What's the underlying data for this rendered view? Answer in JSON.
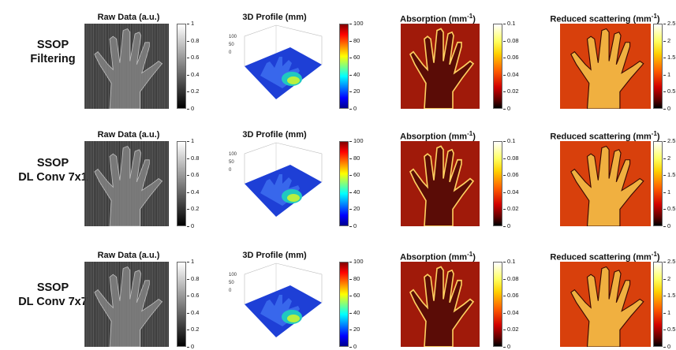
{
  "rows": [
    {
      "label_line1": "SSOP",
      "label_line2": "Filtering"
    },
    {
      "label_line1": "SSOP",
      "label_line2": "DL Conv 7x1"
    },
    {
      "label_line1": "SSOP",
      "label_line2": "DL Conv 7x7"
    }
  ],
  "columns": [
    {
      "title": "Raw Data (a.u.)",
      "ticks": [
        "1",
        "0.8",
        "0.6",
        "0.4",
        "0.2",
        "0"
      ],
      "colormap": "gray"
    },
    {
      "title": "3D Profile (mm)",
      "ticks": [
        "100",
        "80",
        "60",
        "40",
        "20",
        "0"
      ],
      "colormap": "jet",
      "z_ticks": [
        "100",
        "50",
        "0"
      ]
    },
    {
      "title_main": "Absorption (mm",
      "title_sup": "-1",
      "title_end": ")",
      "ticks": [
        "0.1",
        "0.08",
        "0.06",
        "0.04",
        "0.02",
        "0"
      ],
      "colormap": "hot"
    },
    {
      "title_main": "Reduced scattering (mm",
      "title_sup": "-1",
      "title_end": ")",
      "ticks": [
        "2.5",
        "2",
        "1.5",
        "1",
        "0.5",
        "0"
      ],
      "colormap": "hot"
    }
  ],
  "colors": {
    "gray_bg": "#3c3c3c",
    "jet_base": "#1e3fd6",
    "abs_bg": "#a01a0a",
    "scat_bg": "#d8400c"
  }
}
